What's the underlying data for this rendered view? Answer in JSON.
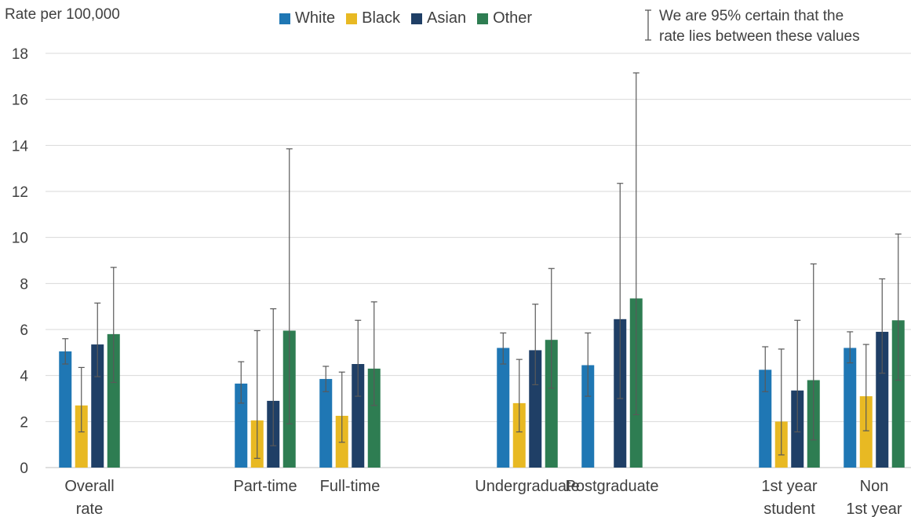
{
  "chart_data": {
    "type": "bar",
    "ylabel": "Rate per 100,000",
    "ylim": [
      0,
      18
    ],
    "yticks": [
      "0",
      "2",
      "4",
      "6",
      "8",
      "10",
      "12",
      "14",
      "16",
      "18"
    ],
    "grid": true,
    "legend_position": "top",
    "ci_note": [
      "We are 95% certain that the",
      "rate lies between these values"
    ],
    "categories": [
      {
        "label": [
          "Overall",
          "rate"
        ]
      },
      {
        "label": [
          "Part-time"
        ]
      },
      {
        "label": [
          "Full-time"
        ]
      },
      {
        "label": [
          "Undergraduate"
        ]
      },
      {
        "label": [
          "Postgraduate"
        ]
      },
      {
        "label": [
          "1st year",
          "student"
        ]
      },
      {
        "label": [
          "Non",
          "1st year"
        ]
      }
    ],
    "series": [
      {
        "name": "White",
        "color": "#1f77b4",
        "values": [
          5.05,
          3.65,
          3.85,
          5.2,
          4.45,
          4.25,
          5.2
        ],
        "lower": [
          4.5,
          2.8,
          3.3,
          4.5,
          3.1,
          3.3,
          4.55
        ],
        "upper": [
          5.6,
          4.6,
          4.4,
          5.85,
          5.85,
          5.25,
          5.9
        ]
      },
      {
        "name": "Black",
        "color": "#e8b923",
        "values": [
          2.7,
          2.05,
          2.25,
          2.8,
          null,
          2.0,
          3.1
        ],
        "lower": [
          1.55,
          0.4,
          1.1,
          1.55,
          null,
          0.55,
          1.6
        ],
        "upper": [
          4.35,
          5.95,
          4.15,
          4.7,
          null,
          5.15,
          5.35
        ]
      },
      {
        "name": "Asian",
        "color": "#1f3f66",
        "values": [
          5.35,
          2.9,
          4.5,
          5.1,
          6.45,
          3.35,
          5.9
        ],
        "lower": [
          3.95,
          0.95,
          3.1,
          3.6,
          3.0,
          1.55,
          4.1
        ],
        "upper": [
          7.15,
          6.9,
          6.4,
          7.1,
          12.35,
          6.4,
          8.2
        ]
      },
      {
        "name": "Other",
        "color": "#2e7d52",
        "values": [
          5.8,
          5.95,
          4.3,
          5.55,
          7.35,
          3.8,
          6.4
        ],
        "lower": [
          3.7,
          1.9,
          2.7,
          3.45,
          2.3,
          1.2,
          3.8
        ],
        "upper": [
          8.7,
          13.85,
          7.2,
          8.65,
          17.15,
          8.85,
          10.15
        ]
      }
    ]
  }
}
